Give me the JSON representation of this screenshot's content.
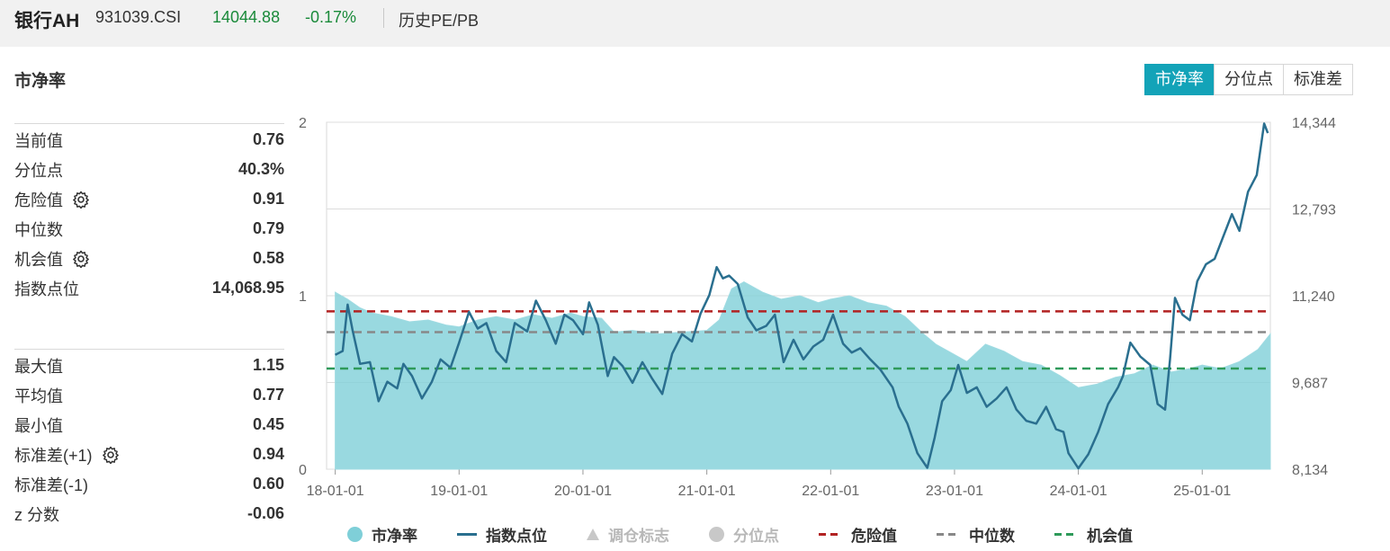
{
  "header": {
    "title": "银行AH",
    "code": "931039.CSI",
    "price": "14044.88",
    "change": "-0.17%",
    "link": "历史PE/PB"
  },
  "section_title": "市净率",
  "tabs": [
    {
      "label": "市净率",
      "active": true
    },
    {
      "label": "分位点",
      "active": false
    },
    {
      "label": "标准差",
      "active": false
    }
  ],
  "stats_top": [
    {
      "label": "当前值",
      "value": "0.76",
      "gear": false
    },
    {
      "label": "分位点",
      "value": "40.3%",
      "gear": false
    },
    {
      "label": "危险值",
      "value": "0.91",
      "gear": true
    },
    {
      "label": "中位数",
      "value": "0.79",
      "gear": false
    },
    {
      "label": "机会值",
      "value": "0.58",
      "gear": true
    },
    {
      "label": "指数点位",
      "value": "14,068.95",
      "gear": false
    }
  ],
  "stats_bottom": [
    {
      "label": "最大值",
      "value": "1.15",
      "gear": false
    },
    {
      "label": "平均值",
      "value": "0.77",
      "gear": false
    },
    {
      "label": "最小值",
      "value": "0.45",
      "gear": false
    },
    {
      "label": "标准差(+1)",
      "value": "0.94",
      "gear": true
    },
    {
      "label": "标准差(-1)",
      "value": "0.60",
      "gear": false
    },
    {
      "label": "z 分数",
      "value": "-0.06",
      "gear": false
    }
  ],
  "legend": [
    {
      "label": "市净率",
      "icon": "dot",
      "color": "#7fcfd8",
      "disabled": false
    },
    {
      "label": "指数点位",
      "icon": "line",
      "color": "#2a6f8f",
      "disabled": false
    },
    {
      "label": "调仓标志",
      "icon": "triangle",
      "color": "#c8c8c8",
      "disabled": true
    },
    {
      "label": "分位点",
      "icon": "dot",
      "color": "#c8c8c8",
      "disabled": true
    },
    {
      "label": "危险值",
      "icon": "dash",
      "color": "#b22222",
      "disabled": false
    },
    {
      "label": "中位数",
      "icon": "dash",
      "color": "#888888",
      "disabled": false
    },
    {
      "label": "机会值",
      "icon": "dash",
      "color": "#2e9a5a",
      "disabled": false
    }
  ],
  "chart_data": {
    "type": "area",
    "x_ticks": [
      "18-01-01",
      "19-01-01",
      "20-01-01",
      "21-01-01",
      "22-01-01",
      "23-01-01",
      "24-01-01",
      "25-01-01"
    ],
    "y_left": {
      "ticks": [
        "0",
        "1",
        "2"
      ],
      "range": [
        0,
        2
      ]
    },
    "y_right": {
      "ticks": [
        "8,134",
        "9,687",
        "11,240",
        "12,793",
        "14,344"
      ],
      "range": [
        8134,
        14344
      ]
    },
    "grid": true,
    "legend_position": "bottom",
    "reference_lines": [
      {
        "name": "危险值",
        "value": 0.91,
        "color": "#b22222"
      },
      {
        "name": "中位数",
        "value": 0.79,
        "color": "#888888"
      },
      {
        "name": "机会值",
        "value": 0.58,
        "color": "#2e9a5a"
      }
    ],
    "pb_series": {
      "name": "市净率",
      "color": "#7fcfd8",
      "x": [
        2018.0,
        2018.1,
        2018.2,
        2018.3,
        2018.45,
        2018.6,
        2018.75,
        2018.9,
        2019.0,
        2019.15,
        2019.3,
        2019.45,
        2019.6,
        2019.75,
        2019.9,
        2020.0,
        2020.15,
        2020.25,
        2020.4,
        2020.6,
        2020.8,
        2021.0,
        2021.1,
        2021.2,
        2021.3,
        2021.45,
        2021.6,
        2021.75,
        2021.9,
        2022.0,
        2022.15,
        2022.3,
        2022.45,
        2022.6,
        2022.75,
        2022.85,
        2023.0,
        2023.1,
        2023.25,
        2023.4,
        2023.55,
        2023.7,
        2023.85,
        2024.0,
        2024.15,
        2024.3,
        2024.45,
        2024.6,
        2024.75,
        2024.9,
        2025.0,
        2025.15,
        2025.3,
        2025.45,
        2025.55
      ],
      "values": [
        1.02,
        0.98,
        0.93,
        0.9,
        0.88,
        0.85,
        0.86,
        0.83,
        0.82,
        0.86,
        0.88,
        0.86,
        0.89,
        0.87,
        0.9,
        0.88,
        0.87,
        0.79,
        0.8,
        0.78,
        0.79,
        0.8,
        0.86,
        1.04,
        1.08,
        1.02,
        0.98,
        1.0,
        0.96,
        0.98,
        1.0,
        0.96,
        0.94,
        0.88,
        0.78,
        0.72,
        0.66,
        0.62,
        0.72,
        0.68,
        0.62,
        0.6,
        0.54,
        0.47,
        0.49,
        0.53,
        0.55,
        0.6,
        0.56,
        0.58,
        0.6,
        0.58,
        0.62,
        0.69,
        0.78
      ]
    },
    "index_series": {
      "name": "指数点位",
      "color": "#2a6f8f",
      "x": [
        2018.0,
        2018.06,
        2018.1,
        2018.14,
        2018.2,
        2018.28,
        2018.35,
        2018.42,
        2018.5,
        2018.55,
        2018.62,
        2018.7,
        2018.78,
        2018.85,
        2018.93,
        2019.0,
        2019.08,
        2019.15,
        2019.22,
        2019.3,
        2019.38,
        2019.45,
        2019.55,
        2019.62,
        2019.7,
        2019.78,
        2019.85,
        2019.92,
        2020.0,
        2020.05,
        2020.12,
        2020.2,
        2020.25,
        2020.32,
        2020.4,
        2020.48,
        2020.56,
        2020.64,
        2020.72,
        2020.8,
        2020.88,
        2020.95,
        2021.02,
        2021.08,
        2021.13,
        2021.18,
        2021.25,
        2021.33,
        2021.4,
        2021.48,
        2021.55,
        2021.62,
        2021.7,
        2021.78,
        2021.86,
        2021.94,
        2022.02,
        2022.1,
        2022.17,
        2022.24,
        2022.32,
        2022.4,
        2022.5,
        2022.55,
        2022.62,
        2022.7,
        2022.78,
        2022.84,
        2022.9,
        2022.97,
        2023.03,
        2023.1,
        2023.18,
        2023.26,
        2023.34,
        2023.42,
        2023.5,
        2023.58,
        2023.66,
        2023.74,
        2023.82,
        2023.88,
        2023.92,
        2024.0,
        2024.08,
        2024.16,
        2024.24,
        2024.32,
        2024.36,
        2024.42,
        2024.5,
        2024.58,
        2024.64,
        2024.7,
        2024.74,
        2024.78,
        2024.84,
        2024.9,
        2024.96,
        2025.03,
        2025.1,
        2025.17,
        2025.24,
        2025.3,
        2025.37,
        2025.44,
        2025.5,
        2025.53
      ],
      "values": [
        10180,
        10250,
        11080,
        10620,
        10020,
        10050,
        9350,
        9700,
        9580,
        10020,
        9800,
        9400,
        9700,
        10100,
        9950,
        10400,
        10950,
        10650,
        10750,
        10250,
        10050,
        10750,
        10600,
        11150,
        10800,
        10380,
        10900,
        10800,
        10550,
        11120,
        10720,
        9800,
        10140,
        9980,
        9680,
        10050,
        9750,
        9480,
        10200,
        10550,
        10420,
        10920,
        11250,
        11750,
        11550,
        11600,
        11450,
        10850,
        10620,
        10700,
        10900,
        10050,
        10450,
        10100,
        10330,
        10450,
        10900,
        10380,
        10220,
        10300,
        10100,
        9920,
        9600,
        9250,
        8950,
        8420,
        8160,
        8700,
        9350,
        9550,
        10000,
        9500,
        9600,
        9250,
        9400,
        9600,
        9200,
        9000,
        8950,
        9250,
        8850,
        8800,
        8420,
        8150,
        8400,
        8800,
        9300,
        9600,
        9800,
        10400,
        10150,
        10000,
        9300,
        9200,
        10100,
        11200,
        10900,
        10800,
        11500,
        11800,
        11900,
        12300,
        12700,
        12400,
        13100,
        13400,
        14320,
        14150
      ]
    }
  }
}
